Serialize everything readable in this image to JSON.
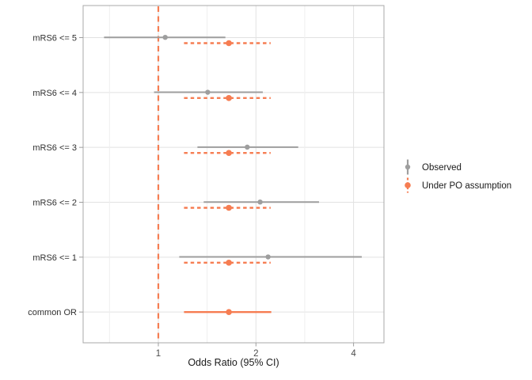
{
  "chart_data": {
    "type": "scatter",
    "subtype": "forest_pointrange",
    "title": "",
    "xlabel": "Odds Ratio (95% CI)",
    "ylabel": "",
    "x_scale": "log2",
    "x_domain": [
      0.59,
      4.95
    ],
    "x_ticks": [
      1,
      2,
      4
    ],
    "x_tick_labels": [
      "1",
      "2",
      "4"
    ],
    "x_minor_gridlines": [
      0.707,
      1.414,
      2.828
    ],
    "grid": true,
    "legend_position": "right",
    "reference_line": {
      "x": 1,
      "color": "#F67D52",
      "style": "dashed"
    },
    "categories": [
      "mRS6 <= 5",
      "mRS6 <= 4",
      "mRS6 <= 3",
      "mRS6 <= 2",
      "mRS6 <= 1",
      "common OR"
    ],
    "series": [
      {
        "name": "Observed",
        "color": "#9E9E9E",
        "linestyle": "solid",
        "points": [
          {
            "category": "mRS6 <= 5",
            "or": 1.05,
            "ci_low": 0.68,
            "ci_high": 1.61
          },
          {
            "category": "mRS6 <= 4",
            "or": 1.42,
            "ci_low": 0.97,
            "ci_high": 2.1
          },
          {
            "category": "mRS6 <= 3",
            "or": 1.88,
            "ci_low": 1.32,
            "ci_high": 2.7
          },
          {
            "category": "mRS6 <= 2",
            "or": 2.06,
            "ci_low": 1.38,
            "ci_high": 3.13
          },
          {
            "category": "mRS6 <= 1",
            "or": 2.18,
            "ci_low": 1.16,
            "ci_high": 4.24
          }
        ]
      },
      {
        "name": "Under PO assumption",
        "color": "#F67D52",
        "linestyle": "dashed",
        "points": [
          {
            "category": "mRS6 <= 5",
            "or": 1.65,
            "ci_low": 1.2,
            "ci_high": 2.22
          },
          {
            "category": "mRS6 <= 4",
            "or": 1.65,
            "ci_low": 1.2,
            "ci_high": 2.22
          },
          {
            "category": "mRS6 <= 3",
            "or": 1.65,
            "ci_low": 1.2,
            "ci_high": 2.22
          },
          {
            "category": "mRS6 <= 2",
            "or": 1.65,
            "ci_low": 1.2,
            "ci_high": 2.22
          },
          {
            "category": "mRS6 <= 1",
            "or": 1.65,
            "ci_low": 1.2,
            "ci_high": 2.22
          },
          {
            "category": "common OR",
            "or": 1.65,
            "ci_low": 1.2,
            "ci_high": 2.23,
            "linestyle": "solid"
          }
        ]
      }
    ],
    "colors": {
      "observed": "#9E9E9E",
      "po_assumption": "#F67D52",
      "grid_major": "#E2E2E2",
      "grid_minor": "#EEEEEE",
      "panel_border": "#A8A8A8",
      "axis_text": "#4D4D4D",
      "title_text": "#1A1A1A"
    }
  }
}
